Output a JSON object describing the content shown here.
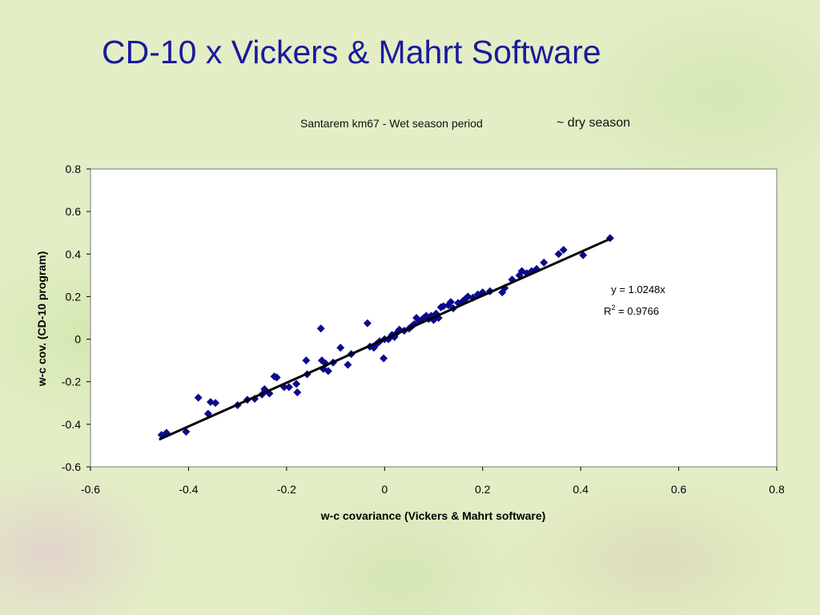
{
  "slide": {
    "title": "CD-10 x Vickers & Mahrt Software",
    "note": "~ dry season"
  },
  "chart_data": {
    "type": "scatter",
    "title": "Santarem km67 - Wet season period",
    "xlabel": "w-c covariance (Vickers & Mahrt software)",
    "ylabel": "w-c cov. (CD-10 program)",
    "xlim": [
      -0.6,
      0.8
    ],
    "ylim": [
      -0.6,
      0.8
    ],
    "xticks": [
      -0.6,
      -0.4,
      -0.2,
      0,
      0.2,
      0.4,
      0.6,
      0.8
    ],
    "yticks": [
      -0.6,
      -0.4,
      -0.2,
      0,
      0.2,
      0.4,
      0.6,
      0.8
    ],
    "xtick_labels": [
      "-0.6",
      "-0.4",
      "-0.2",
      "0",
      "0.2",
      "0.4",
      "0.6",
      "0.8"
    ],
    "ytick_labels": [
      "-0.6",
      "-0.4",
      "-0.2",
      "0",
      "0.2",
      "0.4",
      "0.6",
      "0.8"
    ],
    "grid": false,
    "marker_color": "#0a0a8c",
    "trendline": {
      "equation": "y = 1.0248x",
      "r2_prefix": "R",
      "r2_exp": "2",
      "r2_value": " = 0.9766",
      "slope": 1.0248,
      "x_range": [
        -0.46,
        0.46
      ],
      "color": "#000000"
    },
    "series": [
      {
        "x": [
          -0.455,
          -0.445,
          -0.405,
          -0.38,
          -0.36,
          -0.355,
          -0.345,
          -0.3,
          -0.28,
          -0.265,
          -0.25,
          -0.245,
          -0.235,
          -0.225,
          -0.22,
          -0.205,
          -0.195,
          -0.18,
          -0.178,
          -0.16,
          -0.158,
          -0.13,
          -0.128,
          -0.125,
          -0.12,
          -0.115,
          -0.105,
          -0.09,
          -0.075,
          -0.068,
          -0.035,
          -0.03,
          -0.022,
          -0.02,
          -0.015,
          -0.01,
          -0.002,
          0.0,
          0.008,
          0.015,
          0.02,
          0.025,
          0.03,
          0.04,
          0.05,
          0.055,
          0.06,
          0.065,
          0.07,
          0.075,
          0.08,
          0.085,
          0.09,
          0.095,
          0.1,
          0.105,
          0.11,
          0.115,
          0.12,
          0.13,
          0.135,
          0.14,
          0.15,
          0.16,
          0.165,
          0.17,
          0.18,
          0.19,
          0.2,
          0.215,
          0.24,
          0.245,
          0.26,
          0.275,
          0.28,
          0.29,
          0.3,
          0.31,
          0.325,
          0.355,
          0.365,
          0.405,
          0.46
        ],
        "y": [
          -0.45,
          -0.44,
          -0.435,
          -0.275,
          -0.35,
          -0.295,
          -0.3,
          -0.31,
          -0.285,
          -0.28,
          -0.26,
          -0.235,
          -0.255,
          -0.175,
          -0.18,
          -0.225,
          -0.225,
          -0.21,
          -0.25,
          -0.1,
          -0.165,
          0.05,
          -0.1,
          -0.14,
          -0.115,
          -0.15,
          -0.11,
          -0.04,
          -0.12,
          -0.07,
          0.075,
          -0.035,
          -0.04,
          -0.03,
          -0.02,
          -0.01,
          -0.09,
          0.0,
          0.0,
          0.02,
          0.01,
          0.03,
          0.045,
          0.04,
          0.05,
          0.06,
          0.07,
          0.1,
          0.085,
          0.09,
          0.1,
          0.11,
          0.095,
          0.11,
          0.09,
          0.12,
          0.1,
          0.15,
          0.155,
          0.16,
          0.175,
          0.145,
          0.17,
          0.18,
          0.19,
          0.2,
          0.195,
          0.21,
          0.22,
          0.225,
          0.22,
          0.24,
          0.28,
          0.3,
          0.32,
          0.31,
          0.32,
          0.33,
          0.36,
          0.4,
          0.42,
          0.395,
          0.475
        ]
      }
    ]
  }
}
